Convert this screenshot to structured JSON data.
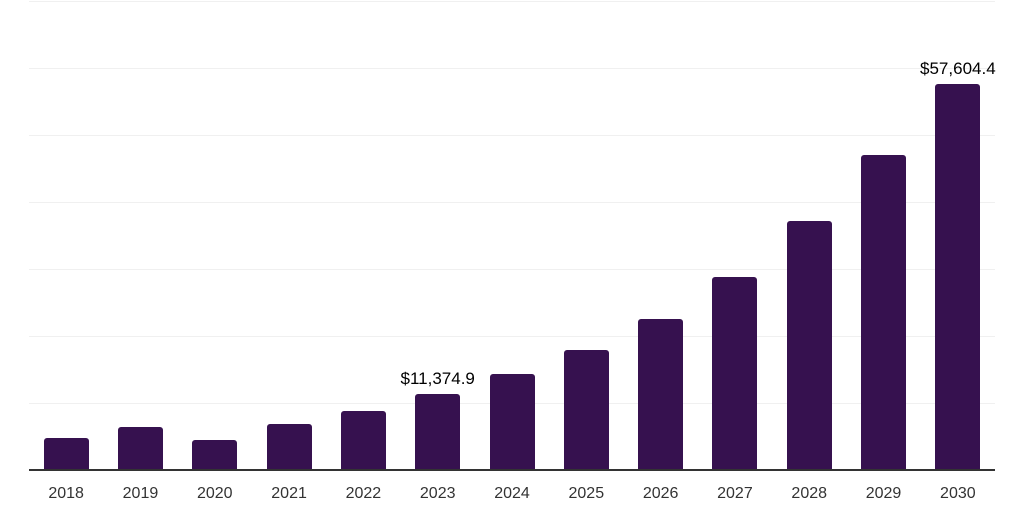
{
  "page": {
    "background_color": "#ffffff"
  },
  "chart_data": {
    "type": "bar",
    "title": "",
    "xlabel": "",
    "ylabel": "",
    "categories": [
      "2018",
      "2019",
      "2020",
      "2021",
      "2022",
      "2023",
      "2024",
      "2025",
      "2026",
      "2027",
      "2028",
      "2029",
      "2030"
    ],
    "values": [
      4800,
      6350,
      4500,
      6900,
      8850,
      11374.9,
      14350,
      17900,
      22550,
      28850,
      37150,
      47000,
      57604.4
    ],
    "data_labels": [
      "",
      "",
      "",
      "",
      "",
      "$11,374.9",
      "",
      "",
      "",
      "",
      "",
      "",
      "$57,604.4"
    ],
    "ylim": [
      0,
      70000
    ],
    "y_tick_step": 10000,
    "y_tick_labels_visible": false,
    "grid": "horizontal",
    "legend": "none",
    "colors": {
      "bar_fill": "#36114f",
      "gridline": "#f0f0f0",
      "axis_line": "#333333",
      "x_tick_label": "#333333",
      "data_label": "#000000"
    }
  }
}
